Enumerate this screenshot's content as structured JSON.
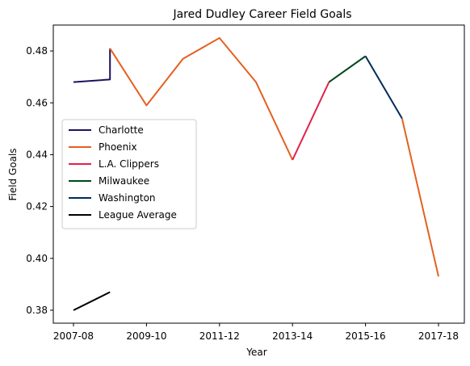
{
  "chart_data": {
    "type": "line",
    "title": "Jared Dudley Career Field Goals",
    "xlabel": "Year",
    "ylabel": "Field Goals",
    "x_tick_labels": [
      "2007-08",
      "2009-10",
      "2011-12",
      "2013-14",
      "2015-16",
      "2017-18"
    ],
    "y_ticks": [
      0.38,
      0.4,
      0.42,
      0.44,
      0.46,
      0.48
    ],
    "y_tick_labels": [
      "0.38",
      "0.40",
      "0.42",
      "0.44",
      "0.46",
      "0.48"
    ],
    "xlim": [
      "2007-08",
      "2017-18"
    ],
    "ylim": [
      0.375,
      0.49
    ],
    "grid": false,
    "legend_position": "center-left",
    "series": [
      {
        "name": "Charlotte",
        "color": "#1d1160",
        "x": [
          "2007-08",
          "2008-09",
          "2008-09"
        ],
        "y": [
          0.468,
          0.469,
          0.481
        ]
      },
      {
        "name": "Phoenix",
        "color": "#e56020",
        "x": [
          "2008-09",
          "2009-10",
          "2010-11",
          "2011-12",
          "2012-13",
          "2013-14"
        ],
        "y": [
          0.481,
          0.459,
          0.477,
          0.485,
          0.468,
          0.438
        ]
      },
      {
        "name": "Phoenix",
        "color": "#e56020",
        "x": [
          "2016-17",
          "2017-18"
        ],
        "y": [
          0.454,
          0.393
        ]
      },
      {
        "name": "L.A. Clippers",
        "color": "#e0234e",
        "x": [
          "2013-14",
          "2014-15"
        ],
        "y": [
          0.438,
          0.468
        ]
      },
      {
        "name": "Milwaukee",
        "color": "#00471b",
        "x": [
          "2014-15",
          "2015-16"
        ],
        "y": [
          0.468,
          0.478
        ]
      },
      {
        "name": "Washington",
        "color": "#002b5c",
        "x": [
          "2015-16",
          "2016-17"
        ],
        "y": [
          0.478,
          0.454
        ]
      },
      {
        "name": "League Average",
        "color": "#000000",
        "x": [
          "2007-08",
          "2008-09"
        ],
        "y": [
          0.38,
          0.387
        ]
      }
    ],
    "legend": [
      {
        "name": "Charlotte",
        "color": "#1d1160"
      },
      {
        "name": "Phoenix",
        "color": "#e56020"
      },
      {
        "name": "L.A. Clippers",
        "color": "#e0234e"
      },
      {
        "name": "Milwaukee",
        "color": "#00471b"
      },
      {
        "name": "Washington",
        "color": "#002b5c"
      },
      {
        "name": "League Average",
        "color": "#000000"
      }
    ]
  }
}
